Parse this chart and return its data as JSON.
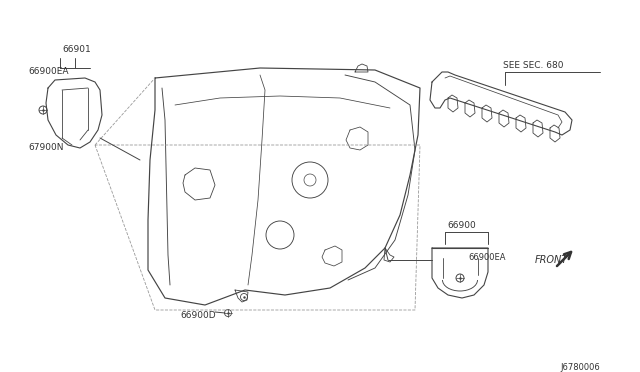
{
  "bg_color": "#ffffff",
  "line_color": "#444444",
  "text_color": "#333333",
  "diagram_num": "J6780006",
  "labels": {
    "part1": "66901",
    "part1b": "66900EA",
    "part2": "67900N",
    "part3": "66900D",
    "part4": "SEE SEC. 680",
    "part5": "66900",
    "part5b": "66900EA",
    "front": "FRONT"
  }
}
